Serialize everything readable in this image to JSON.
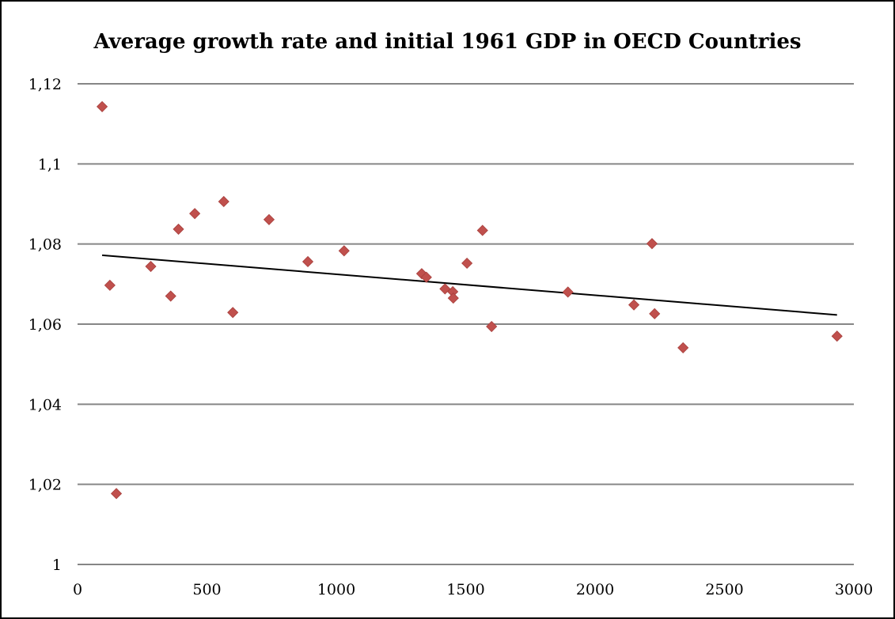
{
  "chart_data": {
    "type": "scatter",
    "title": "Average growth rate and initial 1961 GDP in OECD Countries",
    "xlabel": "",
    "ylabel": "",
    "xlim": [
      0,
      3000
    ],
    "ylim": [
      1,
      1.12
    ],
    "x_ticks": [
      0,
      500,
      1000,
      1500,
      2000,
      2500,
      3000
    ],
    "x_tick_labels": [
      "0",
      "500",
      "1000",
      "1500",
      "2000",
      "2500",
      "3000"
    ],
    "y_ticks": [
      1,
      1.02,
      1.04,
      1.06,
      1.08,
      1.1,
      1.12
    ],
    "y_tick_labels": [
      "1",
      "1,02",
      "1,04",
      "1,06",
      "1,08",
      "1,1",
      "1,12"
    ],
    "grid": "horizontal",
    "legend": "none",
    "marker": "diamond",
    "marker_color": "#c0504d",
    "trendline_color": "#000000",
    "gridline_color": "#868686",
    "series": [
      {
        "points": [
          [
            95,
            1.1143
          ],
          [
            125,
            1.0697
          ],
          [
            150,
            1.0177
          ],
          [
            283,
            1.0744
          ],
          [
            360,
            1.067
          ],
          [
            390,
            1.0837
          ],
          [
            453,
            1.0876
          ],
          [
            565,
            1.0906
          ],
          [
            600,
            1.0629
          ],
          [
            740,
            1.0861
          ],
          [
            890,
            1.0756
          ],
          [
            1030,
            1.0783
          ],
          [
            1330,
            1.0726
          ],
          [
            1348,
            1.0717
          ],
          [
            1420,
            1.0688
          ],
          [
            1450,
            1.0681
          ],
          [
            1452,
            1.0665
          ],
          [
            1505,
            1.0752
          ],
          [
            1565,
            1.0834
          ],
          [
            1600,
            1.0594
          ],
          [
            1895,
            1.068
          ],
          [
            2150,
            1.0648
          ],
          [
            2220,
            1.0801
          ],
          [
            2230,
            1.0626
          ],
          [
            2340,
            1.0541
          ],
          [
            2935,
            1.057
          ]
        ]
      }
    ],
    "trendline": {
      "x": [
        95,
        2935
      ],
      "y": [
        1.0772,
        1.0623
      ]
    }
  }
}
